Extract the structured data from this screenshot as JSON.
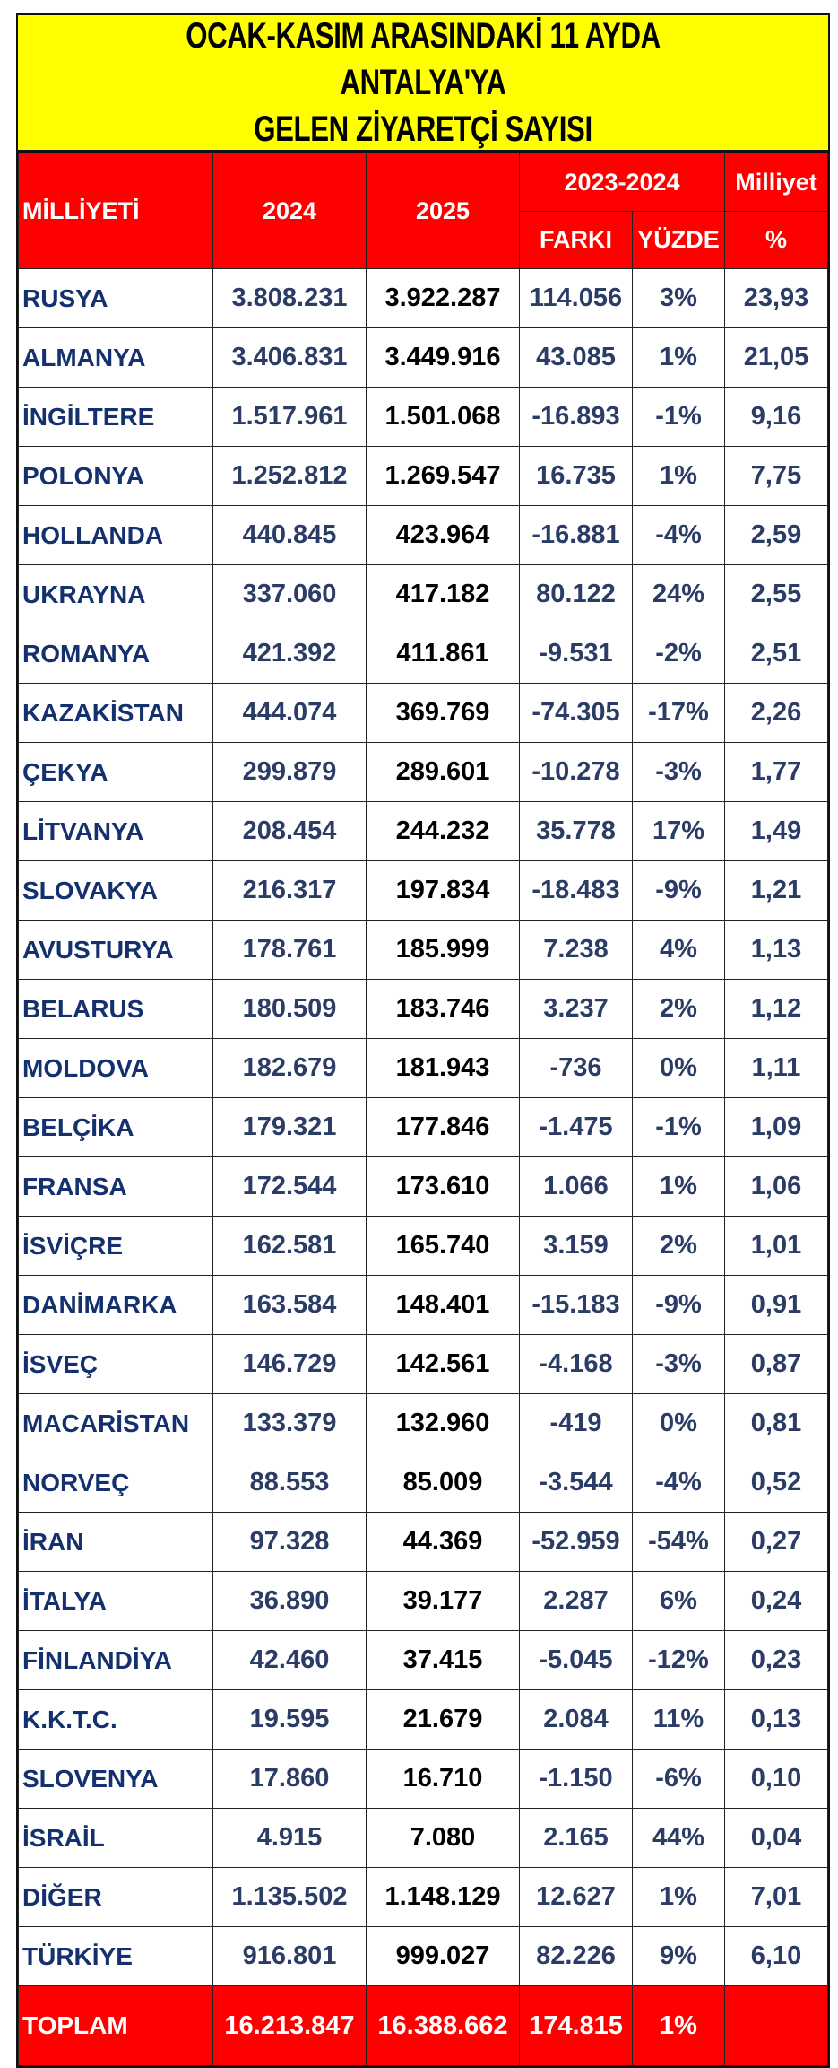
{
  "title": {
    "line1": "OCAK-KASIM ARASINDAKİ 11 AYDA ANTALYA'YA",
    "line2": "GELEN ZİYARETÇİ SAYISI"
  },
  "header": {
    "nationality": "MİLLİYETİ",
    "year1": "2024",
    "year2": "2025",
    "diff_group": "2023-2024",
    "share_group": "Milliyet",
    "diff": "FARKI",
    "percent": "YÜZDE",
    "share_unit": "%"
  },
  "colors": {
    "title_bg": "#ffff00",
    "header_bg": "#ff0000",
    "text_blue": "#2b3d66"
  },
  "rows": [
    {
      "name": "RUSYA",
      "y2024": "3.808.231",
      "y2025": "3.922.287",
      "diff": "114.056",
      "pct": "3%",
      "share": "23,93"
    },
    {
      "name": "ALMANYA",
      "y2024": "3.406.831",
      "y2025": "3.449.916",
      "diff": "43.085",
      "pct": "1%",
      "share": "21,05"
    },
    {
      "name": "İNGİLTERE",
      "y2024": "1.517.961",
      "y2025": "1.501.068",
      "diff": "-16.893",
      "pct": "-1%",
      "share": "9,16"
    },
    {
      "name": "POLONYA",
      "y2024": "1.252.812",
      "y2025": "1.269.547",
      "diff": "16.735",
      "pct": "1%",
      "share": "7,75"
    },
    {
      "name": "HOLLANDA",
      "y2024": "440.845",
      "y2025": "423.964",
      "diff": "-16.881",
      "pct": "-4%",
      "share": "2,59"
    },
    {
      "name": "UKRAYNA",
      "y2024": "337.060",
      "y2025": "417.182",
      "diff": "80.122",
      "pct": "24%",
      "share": "2,55"
    },
    {
      "name": "ROMANYA",
      "y2024": "421.392",
      "y2025": "411.861",
      "diff": "-9.531",
      "pct": "-2%",
      "share": "2,51"
    },
    {
      "name": "KAZAKİSTAN",
      "y2024": "444.074",
      "y2025": "369.769",
      "diff": "-74.305",
      "pct": "-17%",
      "share": "2,26"
    },
    {
      "name": "ÇEKYA",
      "y2024": "299.879",
      "y2025": "289.601",
      "diff": "-10.278",
      "pct": "-3%",
      "share": "1,77"
    },
    {
      "name": "LİTVANYA",
      "y2024": "208.454",
      "y2025": "244.232",
      "diff": "35.778",
      "pct": "17%",
      "share": "1,49"
    },
    {
      "name": "SLOVAKYA",
      "y2024": "216.317",
      "y2025": "197.834",
      "diff": "-18.483",
      "pct": "-9%",
      "share": "1,21"
    },
    {
      "name": "AVUSTURYA",
      "y2024": "178.761",
      "y2025": "185.999",
      "diff": "7.238",
      "pct": "4%",
      "share": "1,13"
    },
    {
      "name": "BELARUS",
      "y2024": "180.509",
      "y2025": "183.746",
      "diff": "3.237",
      "pct": "2%",
      "share": "1,12"
    },
    {
      "name": "MOLDOVA",
      "y2024": "182.679",
      "y2025": "181.943",
      "diff": "-736",
      "pct": "0%",
      "share": "1,11"
    },
    {
      "name": "BELÇİKA",
      "y2024": "179.321",
      "y2025": "177.846",
      "diff": "-1.475",
      "pct": "-1%",
      "share": "1,09"
    },
    {
      "name": "FRANSA",
      "y2024": "172.544",
      "y2025": "173.610",
      "diff": "1.066",
      "pct": "1%",
      "share": "1,06"
    },
    {
      "name": "İSVİÇRE",
      "y2024": "162.581",
      "y2025": "165.740",
      "diff": "3.159",
      "pct": "2%",
      "share": "1,01"
    },
    {
      "name": "DANİMARKA",
      "y2024": "163.584",
      "y2025": "148.401",
      "diff": "-15.183",
      "pct": "-9%",
      "share": "0,91"
    },
    {
      "name": "İSVEÇ",
      "y2024": "146.729",
      "y2025": "142.561",
      "diff": "-4.168",
      "pct": "-3%",
      "share": "0,87"
    },
    {
      "name": "MACARİSTAN",
      "y2024": "133.379",
      "y2025": "132.960",
      "diff": "-419",
      "pct": "0%",
      "share": "0,81"
    },
    {
      "name": "NORVEÇ",
      "y2024": "88.553",
      "y2025": "85.009",
      "diff": "-3.544",
      "pct": "-4%",
      "share": "0,52"
    },
    {
      "name": "İRAN",
      "y2024": "97.328",
      "y2025": "44.369",
      "diff": "-52.959",
      "pct": "-54%",
      "share": "0,27"
    },
    {
      "name": "İTALYA",
      "y2024": "36.890",
      "y2025": "39.177",
      "diff": "2.287",
      "pct": "6%",
      "share": "0,24"
    },
    {
      "name": "FİNLANDİYA",
      "y2024": "42.460",
      "y2025": "37.415",
      "diff": "-5.045",
      "pct": "-12%",
      "share": "0,23"
    },
    {
      "name": "K.K.T.C.",
      "y2024": "19.595",
      "y2025": "21.679",
      "diff": "2.084",
      "pct": "11%",
      "share": "0,13"
    },
    {
      "name": "SLOVENYA",
      "y2024": "17.860",
      "y2025": "16.710",
      "diff": "-1.150",
      "pct": "-6%",
      "share": "0,10"
    },
    {
      "name": "İSRAİL",
      "y2024": "4.915",
      "y2025": "7.080",
      "diff": "2.165",
      "pct": "44%",
      "share": "0,04"
    },
    {
      "name": "DİĞER",
      "y2024": "1.135.502",
      "y2025": "1.148.129",
      "diff": "12.627",
      "pct": "1%",
      "share": "7,01"
    },
    {
      "name": "TÜRKİYE",
      "y2024": "916.801",
      "y2025": "999.027",
      "diff": "82.226",
      "pct": "9%",
      "share": "6,10"
    }
  ],
  "total": {
    "name": "TOPLAM",
    "y2024": "16.213.847",
    "y2025": "16.388.662",
    "diff": "174.815",
    "pct": "1%",
    "share": ""
  }
}
